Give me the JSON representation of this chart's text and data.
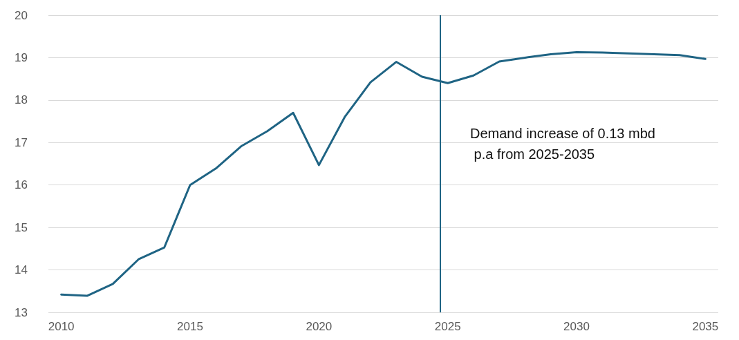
{
  "chart_data": {
    "type": "line",
    "x": [
      2010,
      2011,
      2012,
      2013,
      2014,
      2015,
      2016,
      2017,
      2018,
      2019,
      2020,
      2021,
      2022,
      2023,
      2024,
      2025,
      2026,
      2027,
      2028,
      2029,
      2030,
      2031,
      2032,
      2033,
      2034,
      2035
    ],
    "series": [
      {
        "color": "#1f6484",
        "values": [
          13.42,
          13.39,
          13.67,
          14.25,
          14.53,
          16.0,
          16.39,
          16.92,
          17.27,
          17.7,
          16.47,
          17.6,
          18.42,
          18.9,
          18.55,
          18.4,
          18.58,
          18.91,
          19.0,
          19.08,
          19.13,
          19.12,
          19.1,
          19.08,
          19.06,
          18.97
        ]
      }
    ],
    "xlim": [
      2009.5,
      2035.5
    ],
    "xticks": [
      2010,
      2015,
      2020,
      2025,
      2030,
      2035
    ],
    "ylim": [
      13,
      20
    ],
    "yticks": [
      13,
      14,
      15,
      16,
      17,
      18,
      19,
      20
    ],
    "grid": "y",
    "marker": "none",
    "line_style": "solid",
    "ref_lines": [
      {
        "axis": "x",
        "value": 2024.7,
        "color": "#1f6484"
      }
    ],
    "annotations": [
      "Demand increase of 0.13 mbd\n p.a from 2025-2035"
    ]
  }
}
